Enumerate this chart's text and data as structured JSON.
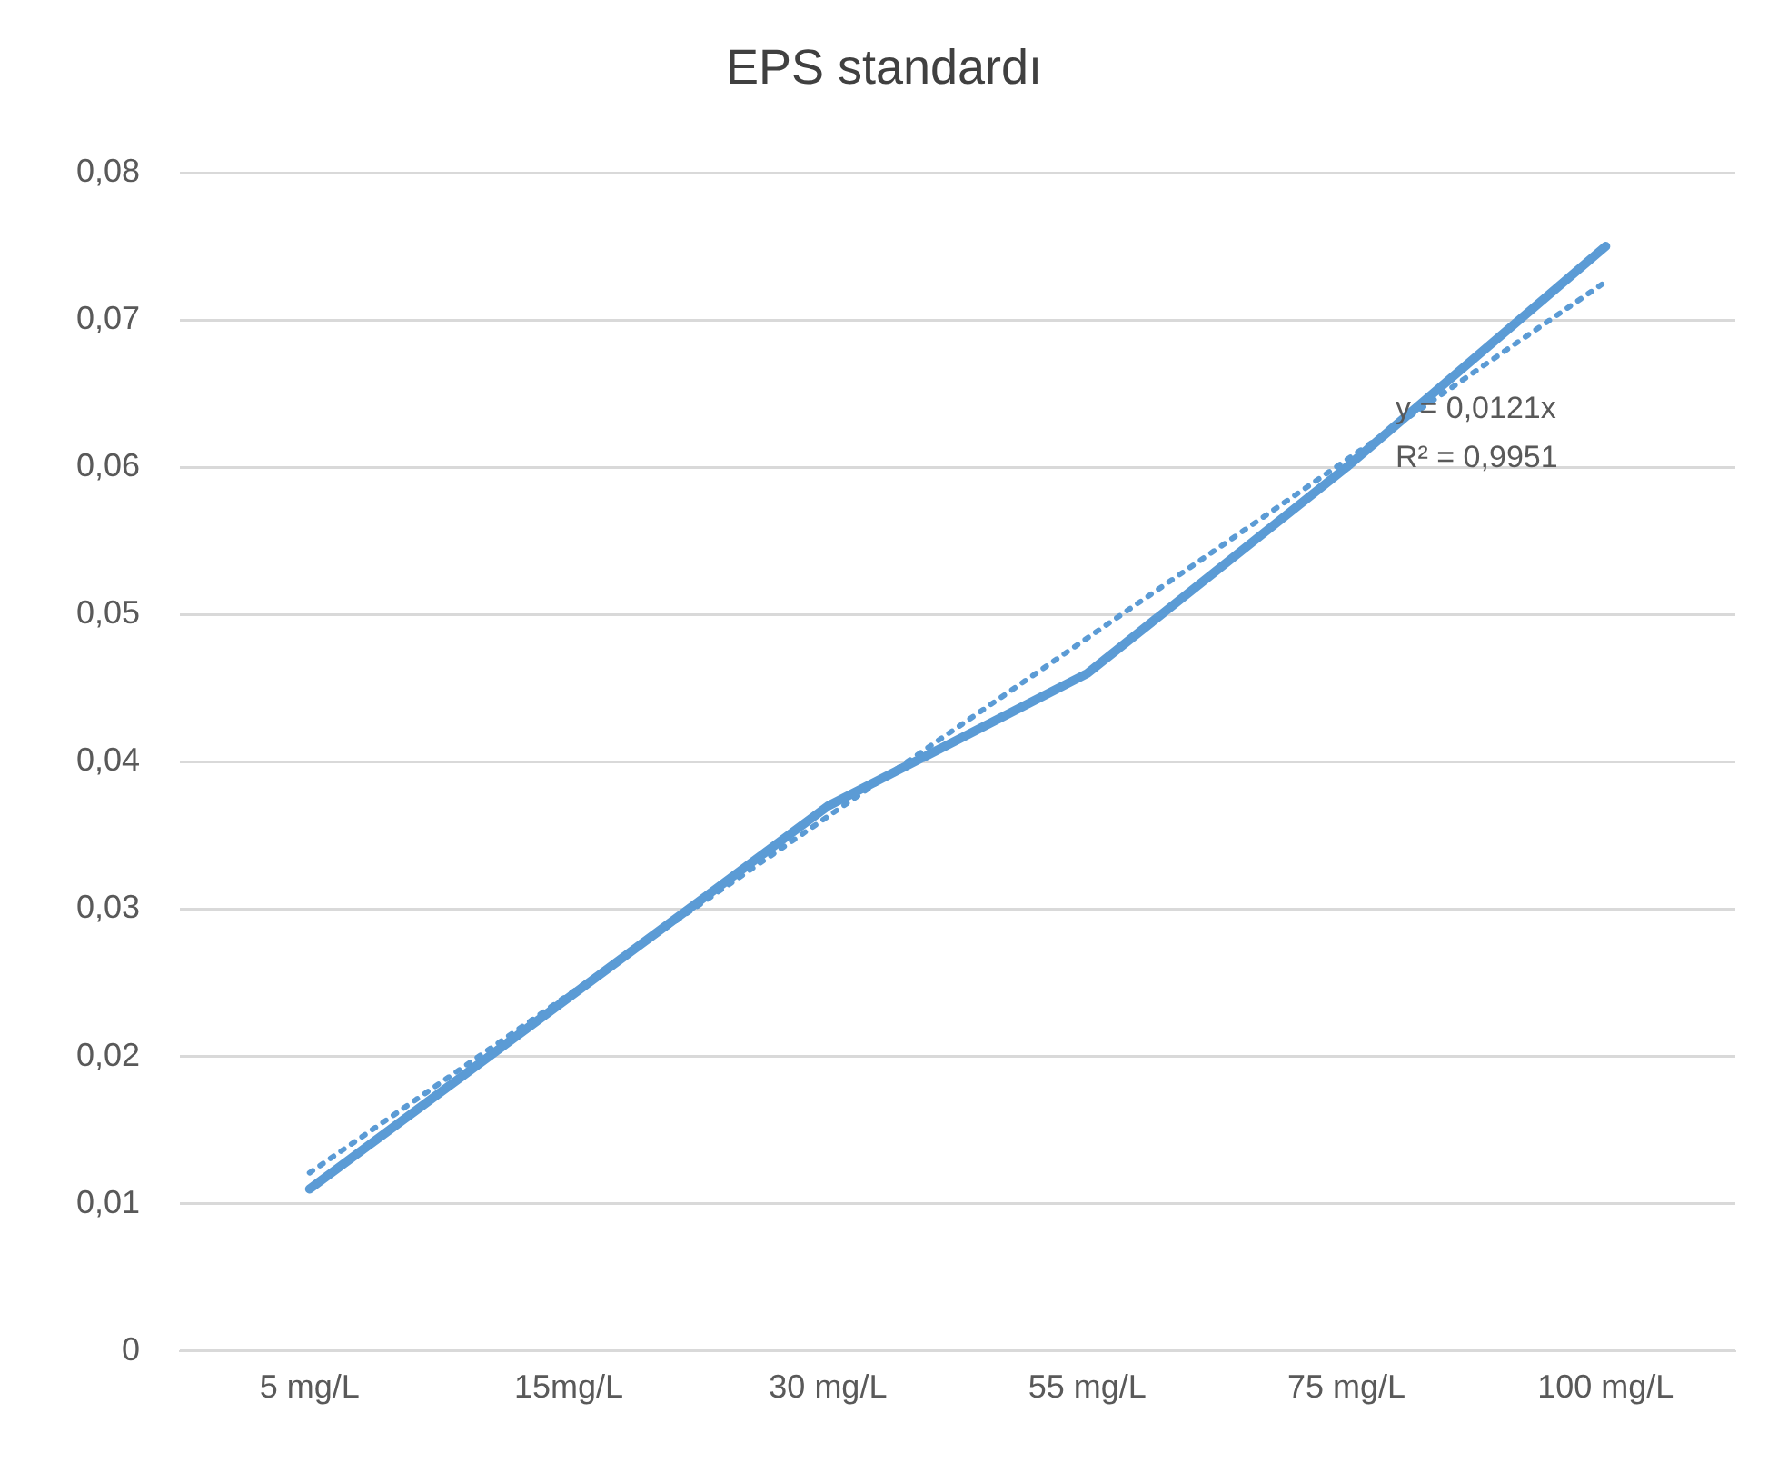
{
  "chart_data": {
    "type": "line",
    "title": "EPS standardı",
    "categories": [
      "5 mg/L",
      "15mg/L",
      "30 mg/L",
      "55 mg/L",
      "75 mg/L",
      "100 mg/L"
    ],
    "series": [
      {
        "color": "#5b9bd5",
        "values": [
          0.011,
          0.024,
          0.037,
          0.046,
          0.06,
          0.075
        ]
      },
      {
        "type": "line",
        "line_style": "dotted",
        "color": "#5b9bd5",
        "values": [
          0.0121,
          0.0242,
          0.0363,
          0.0484,
          0.0605,
          0.0726
        ]
      }
    ],
    "ylim": [
      0,
      0.08
    ],
    "yticks": [
      {
        "value": 0,
        "label": "0"
      },
      {
        "value": 0.01,
        "label": "0,01"
      },
      {
        "value": 0.02,
        "label": "0,02"
      },
      {
        "value": 0.03,
        "label": "0,03"
      },
      {
        "value": 0.04,
        "label": "0,04"
      },
      {
        "value": 0.05,
        "label": "0,05"
      },
      {
        "value": 0.06,
        "label": "0,06"
      },
      {
        "value": 0.07,
        "label": "0,07"
      },
      {
        "value": 0.08,
        "label": "0,08"
      }
    ],
    "grid": "y",
    "legend": false,
    "marker": "none",
    "annotations": [
      "y = 0,0121x",
      "R² = 0,9951"
    ]
  }
}
